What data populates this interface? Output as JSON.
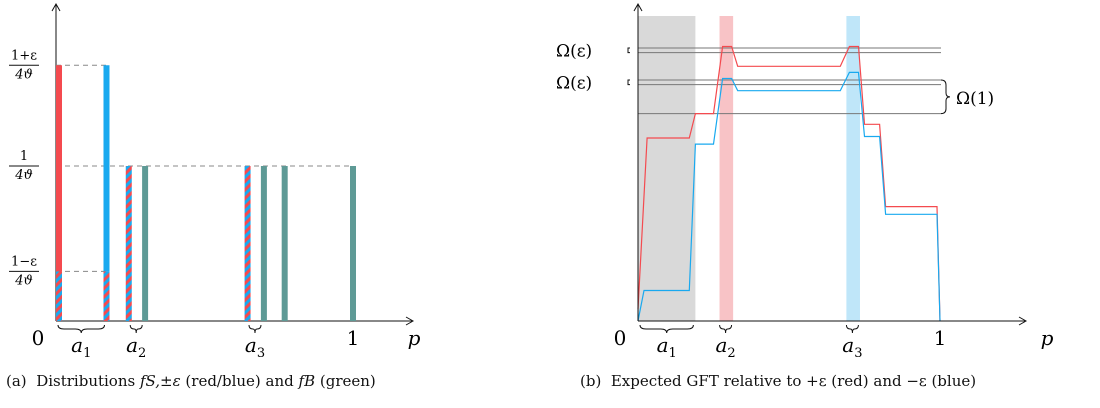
{
  "captions": {
    "a": {
      "tag": "(a)",
      "text_prefix": "Distributions ",
      "f_s": "fS,±ε",
      "text_mid": " (red/blue) and ",
      "f_b": "fB",
      "text_suffix": " (green)"
    },
    "b": {
      "tag": "(b)",
      "text": "Expected GFT relative to +ε (red) and −ε (blue)"
    }
  },
  "colors": {
    "red": "#f44a4f",
    "blue": "#19a9ef",
    "green": "#5e9a96",
    "gray_band": "#d9d9d9",
    "pink_band": "#f8c3c6",
    "lightblue_band": "#bfe6f9",
    "line_gray": "#777777",
    "axis": "#111111"
  },
  "chart_data": [
    {
      "type": "bar",
      "panel": "a",
      "x_axis_label": "p",
      "origin_label": "0",
      "x_tick_labels": [
        {
          "x": 1,
          "label": "1"
        }
      ],
      "brace_labels": [
        {
          "name": "a1",
          "label": "a",
          "sub": "1",
          "from": 0,
          "to": 0.17
        },
        {
          "name": "a2",
          "label": "a",
          "sub": "2",
          "at": 0.27
        },
        {
          "name": "a3",
          "label": "a",
          "sub": "3",
          "at": 0.67
        }
      ],
      "y_levels": [
        {
          "name": "high",
          "num": "1+ε",
          "den": "4ϑ",
          "value": 1.65
        },
        {
          "name": "mid",
          "num": "1",
          "den": "4ϑ",
          "value": 1.0
        },
        {
          "name": "low",
          "num": "1−ε",
          "den": "4ϑ",
          "value": 0.32
        }
      ],
      "ylim": [
        0,
        2.0
      ],
      "xlim": [
        0,
        1.25
      ],
      "bars": [
        {
          "x": 0.0,
          "segments": [
            {
              "from": 0,
              "to": 0.32,
              "fill": "hatch"
            },
            {
              "from": 0.32,
              "to": 1.65,
              "fill": "red"
            }
          ]
        },
        {
          "x": 0.17,
          "segments": [
            {
              "from": 0,
              "to": 0.32,
              "fill": "hatch"
            },
            {
              "from": 0.32,
              "to": 1.65,
              "fill": "blue"
            }
          ]
        },
        {
          "x": 0.245,
          "segments": [
            {
              "from": 0,
              "to": 1.0,
              "fill": "hatch"
            }
          ]
        },
        {
          "x": 0.3,
          "segments": [
            {
              "from": 0,
              "to": 1.0,
              "fill": "green"
            }
          ]
        },
        {
          "x": 0.645,
          "segments": [
            {
              "from": 0,
              "to": 1.0,
              "fill": "hatch"
            }
          ]
        },
        {
          "x": 0.7,
          "segments": [
            {
              "from": 0,
              "to": 1.0,
              "fill": "green"
            }
          ]
        },
        {
          "x": 0.77,
          "segments": [
            {
              "from": 0,
              "to": 1.0,
              "fill": "green"
            }
          ]
        },
        {
          "x": 1.0,
          "segments": [
            {
              "from": 0,
              "to": 1.0,
              "fill": "green"
            }
          ]
        }
      ]
    },
    {
      "type": "line",
      "panel": "b",
      "x_axis_label": "p",
      "origin_label": "0",
      "x_tick_labels": [
        {
          "x": 1,
          "label": "1"
        }
      ],
      "brace_labels": [
        {
          "name": "a1",
          "label": "a",
          "sub": "1",
          "from": 0,
          "to": 0.19
        },
        {
          "name": "a2",
          "label": "a",
          "sub": "2",
          "at": 0.29
        },
        {
          "name": "a3",
          "label": "a",
          "sub": "3",
          "at": 0.71
        }
      ],
      "xlim": [
        0,
        1.32
      ],
      "ylim": [
        0,
        1.0
      ],
      "bands": [
        {
          "from": 0.0,
          "to": 0.19,
          "color": "gray_band"
        },
        {
          "from": 0.27,
          "to": 0.315,
          "color": "pink_band"
        },
        {
          "from": 0.69,
          "to": 0.735,
          "color": "lightblue_band"
        }
      ],
      "reference_lines": [
        0.895,
        0.88,
        0.79,
        0.775,
        0.68
      ],
      "annotations": [
        {
          "name": "omega-eps-top",
          "text": "Ω(ε)",
          "y": 0.89
        },
        {
          "name": "omega-eps-mid",
          "text": "Ω(ε)",
          "y": 0.785
        },
        {
          "name": "omega-one",
          "text": "Ω(1)",
          "y_from": 0.68,
          "y_to": 0.79
        }
      ],
      "series": [
        {
          "color": "red",
          "x": [
            0,
            0.03,
            0.17,
            0.19,
            0.25,
            0.28,
            0.31,
            0.33,
            0.67,
            0.7,
            0.73,
            0.75,
            0.8,
            0.82,
            0.84,
            0.99,
            1.0
          ],
          "y": [
            0.04,
            0.6,
            0.6,
            0.68,
            0.68,
            0.9,
            0.9,
            0.835,
            0.835,
            0.9,
            0.9,
            0.645,
            0.645,
            0.375,
            0.375,
            0.375,
            0.0
          ]
        },
        {
          "color": "blue",
          "x": [
            0,
            0.02,
            0.17,
            0.19,
            0.25,
            0.28,
            0.31,
            0.33,
            0.67,
            0.7,
            0.73,
            0.75,
            0.8,
            0.82,
            0.84,
            0.99,
            1.0
          ],
          "y": [
            0.0,
            0.1,
            0.1,
            0.58,
            0.58,
            0.795,
            0.795,
            0.755,
            0.755,
            0.815,
            0.815,
            0.605,
            0.605,
            0.35,
            0.35,
            0.35,
            0.0
          ]
        }
      ]
    }
  ]
}
